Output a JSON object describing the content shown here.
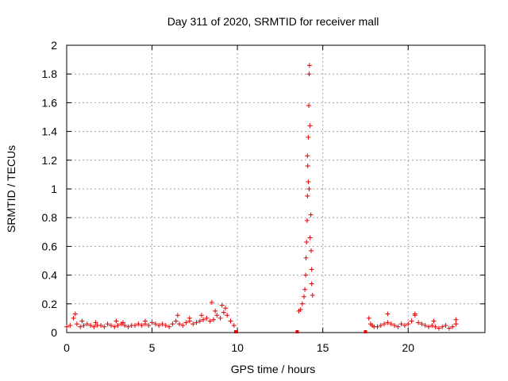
{
  "chart_data": {
    "type": "scatter",
    "title": "Day 311 of 2020, SRMTID for receiver mall",
    "xlabel": "GPS time / hours",
    "ylabel": "SRMTID / TECUs",
    "xlim": [
      0,
      24.5
    ],
    "ylim": [
      0,
      2
    ],
    "x_ticks": [
      0,
      5,
      10,
      15,
      20
    ],
    "x_tick_labels": [
      "0",
      "5",
      "10",
      "15",
      "20"
    ],
    "y_ticks": [
      0,
      0.2,
      0.4,
      0.6,
      0.8,
      1,
      1.2,
      1.4,
      1.6,
      1.8,
      2
    ],
    "y_tick_labels": [
      "0",
      "0.2",
      "0.4",
      "0.6",
      "0.8",
      "1",
      "1.2",
      "1.4",
      "1.6",
      "1.8",
      "2"
    ],
    "grid": true,
    "marker": "+",
    "color": "#e00000",
    "series": [
      {
        "name": "SRMTID",
        "x": [
          0.0,
          0.2,
          0.4,
          0.6,
          0.8,
          1.0,
          1.2,
          1.4,
          1.6,
          1.8,
          2.0,
          2.2,
          2.4,
          2.6,
          2.8,
          3.0,
          3.2,
          3.4,
          3.6,
          3.8,
          4.0,
          4.2,
          4.4,
          4.6,
          4.8,
          5.0,
          5.2,
          5.4,
          5.6,
          5.8,
          6.0,
          6.2,
          6.4,
          6.6,
          6.8,
          7.0,
          7.2,
          7.4,
          7.6,
          7.8,
          8.0,
          8.2,
          8.4,
          8.6,
          8.8,
          9.0,
          9.2,
          9.4,
          9.6,
          9.8,
          0.5,
          0.9,
          1.7,
          2.9,
          3.3,
          4.6,
          6.5,
          7.2,
          7.9,
          8.5,
          8.7,
          9.1,
          9.3,
          13.6,
          13.7,
          13.8,
          13.9,
          13.95,
          14.0,
          14.02,
          14.05,
          14.08,
          14.1,
          14.12,
          14.15,
          14.18,
          14.2,
          14.22,
          14.25,
          14.3,
          14.32,
          14.35,
          14.4,
          14.1,
          14.15,
          14.2,
          14.25,
          14.35,
          17.7,
          17.8,
          17.9,
          18.0,
          18.2,
          18.4,
          18.6,
          18.8,
          19.0,
          19.2,
          19.4,
          19.6,
          19.8,
          20.0,
          20.2,
          20.4,
          20.6,
          20.8,
          21.0,
          21.2,
          21.4,
          21.6,
          21.8,
          22.0,
          22.2,
          22.4,
          22.6,
          22.8,
          18.8,
          20.4,
          21.5,
          22.8
        ],
        "y": [
          0.04,
          0.05,
          0.1,
          0.06,
          0.04,
          0.05,
          0.06,
          0.05,
          0.04,
          0.05,
          0.05,
          0.04,
          0.06,
          0.05,
          0.04,
          0.05,
          0.06,
          0.05,
          0.04,
          0.05,
          0.05,
          0.06,
          0.05,
          0.06,
          0.05,
          0.07,
          0.06,
          0.05,
          0.06,
          0.05,
          0.04,
          0.06,
          0.08,
          0.06,
          0.05,
          0.07,
          0.08,
          0.06,
          0.07,
          0.08,
          0.09,
          0.1,
          0.08,
          0.09,
          0.12,
          0.1,
          0.14,
          0.12,
          0.08,
          0.05,
          0.13,
          0.08,
          0.07,
          0.08,
          0.07,
          0.08,
          0.12,
          0.1,
          0.12,
          0.21,
          0.15,
          0.19,
          0.17,
          0.15,
          0.16,
          0.2,
          0.25,
          0.3,
          0.4,
          0.52,
          0.63,
          0.78,
          0.95,
          1.16,
          1.36,
          1.58,
          1.8,
          1.86,
          1.44,
          0.82,
          0.57,
          0.34,
          0.26,
          1.23,
          1.05,
          1.0,
          0.66,
          0.44,
          0.1,
          0.06,
          0.05,
          0.04,
          0.04,
          0.05,
          0.06,
          0.07,
          0.06,
          0.05,
          0.04,
          0.06,
          0.05,
          0.06,
          0.08,
          0.13,
          0.07,
          0.06,
          0.05,
          0.04,
          0.05,
          0.04,
          0.03,
          0.04,
          0.05,
          0.03,
          0.04,
          0.06,
          0.13,
          0.12,
          0.08,
          0.09
        ]
      }
    ],
    "gap_markers_x": [
      9.9,
      13.5,
      17.5
    ]
  }
}
